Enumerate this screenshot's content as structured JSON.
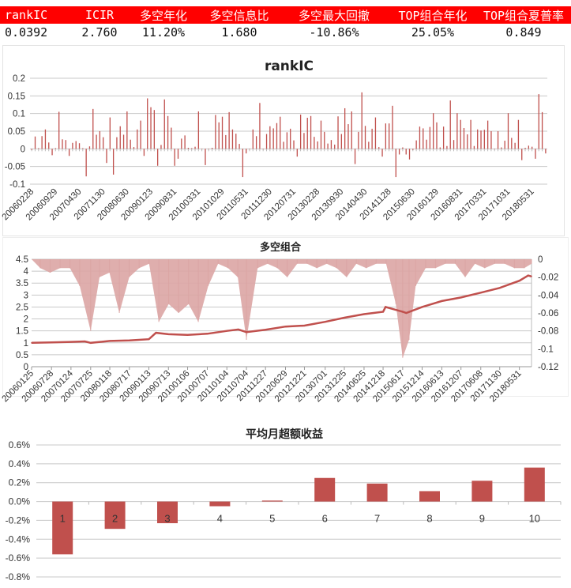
{
  "stats": {
    "headers": [
      "rankIC",
      "ICIR",
      "多空年化",
      "多空信息比",
      "多空最大回撤",
      "TOP组合年化",
      "TOP组合夏普率"
    ],
    "values": [
      "0.0392",
      "2.760",
      "11.20%",
      "1.680",
      "-10.86%",
      "25.05%",
      "0.849"
    ],
    "header_bg": "#ff0000"
  },
  "chart_data": [
    {
      "type": "bar",
      "title": "rankIC",
      "ylim": [
        -0.1,
        0.2
      ],
      "yticks": [
        "0.2",
        "0.15",
        "0.1",
        "0.05",
        "0",
        "-0.05",
        "-0.1"
      ],
      "grid": true,
      "color": "#c0504d",
      "xtick_labels": [
        "20060228",
        "20060929",
        "20070430",
        "20071130",
        "20080630",
        "20090123",
        "20090831",
        "20100331",
        "20101029",
        "20110531",
        "20111230",
        "20120731",
        "20130228",
        "20130930",
        "20140430",
        "20141128",
        "20150630",
        "20160129",
        "20160831",
        "20170331",
        "20171031",
        "20180531"
      ],
      "values": [
        -0.003,
        0.035,
        0.002,
        0.036,
        0.055,
        0.018,
        -0.018,
        0.002,
        0.105,
        0.027,
        0.025,
        -0.02,
        0.017,
        0.022,
        0.016,
        0.002,
        -0.078,
        0.007,
        0.113,
        0.04,
        0.05,
        0.033,
        -0.04,
        0.089,
        -0.073,
        0.033,
        0.064,
        0.04,
        0.106,
        0.026,
        0.005,
        0.055,
        0.08,
        -0.02,
        0.143,
        0.118,
        0.11,
        -0.048,
        0.011,
        0.14,
        0.093,
        0.06,
        -0.048,
        -0.028,
        0.029,
        0.038,
        0.003,
        0.002,
        0.006,
        0.106,
        0.0,
        -0.046,
        0.0,
        0.003,
        0.096,
        0.075,
        0.091,
        0.039,
        0.104,
        0.055,
        0.043,
        0.014,
        -0.08,
        -0.013,
        0.0,
        0.055,
        0.036,
        0.13,
        0.0,
        0.042,
        0.064,
        0.058,
        0.073,
        0.091,
        0.02,
        0.047,
        0.057,
        0.024,
        -0.022,
        0.097,
        0.045,
        0.088,
        0.093,
        0.034,
        0.021,
        0.08,
        0.048,
        0.015,
        0.025,
        0.012,
        0.092,
        0.042,
        0.115,
        0.07,
        0.106,
        -0.043,
        0.048,
        0.16,
        0.065,
        0.02,
        0.057,
        0.089,
        0.005,
        -0.022,
        0.072,
        0.072,
        0.122,
        -0.08,
        -0.016,
        0.004,
        -0.016,
        -0.03,
        -0.003,
        0.024,
        0.063,
        0.058,
        0.026,
        0.062,
        0.101,
        0.075,
        0.004,
        0.063,
        0.008,
        0.137,
        0.025,
        0.101,
        0.082,
        0.059,
        0.041,
        0.082,
        0.008,
        0.055,
        0.052,
        0.054,
        0.08,
        0.05,
        0.0,
        0.05,
        0.004,
        0.023,
        0.101,
        0.031,
        0.017,
        0.082,
        -0.032,
        0.003,
        0.009,
        0.006,
        -0.028,
        0.155,
        0.104,
        -0.013
      ]
    },
    {
      "type": "line+area",
      "title": "多空组合",
      "ylim_left": [
        0,
        4.5
      ],
      "ylim_right": [
        -0.12,
        0
      ],
      "yticks_left": [
        "4.5",
        "4",
        "3.5",
        "3",
        "2.5",
        "2",
        "1.5",
        "1",
        "0.5",
        "0"
      ],
      "yticks_right": [
        "0",
        "-0.02",
        "-0.04",
        "-0.06",
        "-0.08",
        "-0.1",
        "-0.12"
      ],
      "grid": true,
      "line_color": "#c0504d",
      "area_color": "#dba5a4",
      "xtick_labels": [
        "20060125",
        "20060728",
        "20070124",
        "20070725",
        "20080118",
        "20080717",
        "20090113",
        "20090713",
        "20100106",
        "20100707",
        "20110104",
        "20110704",
        "20111227",
        "20120629",
        "20121221",
        "20130701",
        "20131225",
        "20140625",
        "20141218",
        "20150617",
        "20151214",
        "20160613",
        "20161207",
        "20170608",
        "20171130",
        "20180531"
      ],
      "nav": [
        [
          "20060125",
          1.0
        ],
        [
          "20060728",
          1.02
        ],
        [
          "20070124",
          1.04
        ],
        [
          "20070601",
          1.06
        ],
        [
          "20070725",
          1.0
        ],
        [
          "20080118",
          1.08
        ],
        [
          "20080717",
          1.1
        ],
        [
          "20090113",
          1.15
        ],
        [
          "20090320",
          1.42
        ],
        [
          "20090713",
          1.36
        ],
        [
          "20100106",
          1.33
        ],
        [
          "20100707",
          1.38
        ],
        [
          "20110104",
          1.5
        ],
        [
          "20110420",
          1.56
        ],
        [
          "20110704",
          1.45
        ],
        [
          "20111227",
          1.55
        ],
        [
          "20120629",
          1.68
        ],
        [
          "20121221",
          1.72
        ],
        [
          "20130701",
          1.88
        ],
        [
          "20131225",
          2.05
        ],
        [
          "20140625",
          2.2
        ],
        [
          "20141218",
          2.3
        ],
        [
          "20150110",
          2.5
        ],
        [
          "20150617",
          2.3
        ],
        [
          "20150720",
          2.25
        ],
        [
          "20151214",
          2.5
        ],
        [
          "20160613",
          2.75
        ],
        [
          "20161207",
          2.9
        ],
        [
          "20170608",
          3.1
        ],
        [
          "20171130",
          3.3
        ],
        [
          "20180531",
          3.6
        ],
        [
          "20180820",
          3.82
        ],
        [
          "20180920",
          3.78
        ]
      ],
      "drawdown": [
        [
          "20060125",
          0
        ],
        [
          "20060415",
          -0.01
        ],
        [
          "20060715",
          -0.015
        ],
        [
          "20061015",
          -0.01
        ],
        [
          "20070115",
          -0.01
        ],
        [
          "20070415",
          -0.03
        ],
        [
          "20070725",
          -0.08
        ],
        [
          "20071015",
          -0.02
        ],
        [
          "20080115",
          -0.015
        ],
        [
          "20080415",
          -0.06
        ],
        [
          "20080715",
          -0.02
        ],
        [
          "20081015",
          -0.01
        ],
        [
          "20090115",
          -0.005
        ],
        [
          "20090415",
          -0.07
        ],
        [
          "20090715",
          -0.05
        ],
        [
          "20091015",
          -0.06
        ],
        [
          "20100115",
          -0.05
        ],
        [
          "20100415",
          -0.07
        ],
        [
          "20100715",
          -0.03
        ],
        [
          "20101015",
          -0.005
        ],
        [
          "20110115",
          -0.01
        ],
        [
          "20110415",
          -0.02
        ],
        [
          "20110704",
          -0.09
        ],
        [
          "20111015",
          -0.01
        ],
        [
          "20120115",
          -0.005
        ],
        [
          "20120415",
          -0.01
        ],
        [
          "20120715",
          -0.02
        ],
        [
          "20121015",
          -0.005
        ],
        [
          "20130115",
          -0.005
        ],
        [
          "20130415",
          -0.01
        ],
        [
          "20130715",
          -0.005
        ],
        [
          "20131015",
          -0.01
        ],
        [
          "20140115",
          -0.02
        ],
        [
          "20140415",
          -0.005
        ],
        [
          "20140715",
          -0.01
        ],
        [
          "20141015",
          -0.005
        ],
        [
          "20150115",
          -0.005
        ],
        [
          "20150415",
          -0.05
        ],
        [
          "20150617",
          -0.11
        ],
        [
          "20150815",
          -0.09
        ],
        [
          "20151015",
          -0.03
        ],
        [
          "20160115",
          -0.01
        ],
        [
          "20160415",
          -0.01
        ],
        [
          "20160715",
          -0.005
        ],
        [
          "20161015",
          -0.005
        ],
        [
          "20170115",
          -0.02
        ],
        [
          "20170415",
          -0.005
        ],
        [
          "20170715",
          -0.01
        ],
        [
          "20171015",
          -0.005
        ],
        [
          "20180115",
          -0.005
        ],
        [
          "20180415",
          -0.01
        ],
        [
          "20180715",
          -0.01
        ],
        [
          "20180920",
          -0.005
        ]
      ]
    },
    {
      "type": "bar",
      "title": "平均月超额收益",
      "categories": [
        "1",
        "2",
        "3",
        "4",
        "5",
        "6",
        "7",
        "8",
        "9",
        "10"
      ],
      "values": [
        -0.56,
        -0.29,
        -0.23,
        -0.05,
        0.01,
        0.25,
        0.19,
        0.11,
        0.22,
        0.36
      ],
      "unit": "%",
      "ylim": [
        -0.8,
        0.6
      ],
      "yticks": [
        "0.6%",
        "0.4%",
        "0.2%",
        "0.0%",
        "-0.2%",
        "-0.4%",
        "-0.6%",
        "-0.8%"
      ],
      "grid": true,
      "color": "#c0504d"
    }
  ]
}
